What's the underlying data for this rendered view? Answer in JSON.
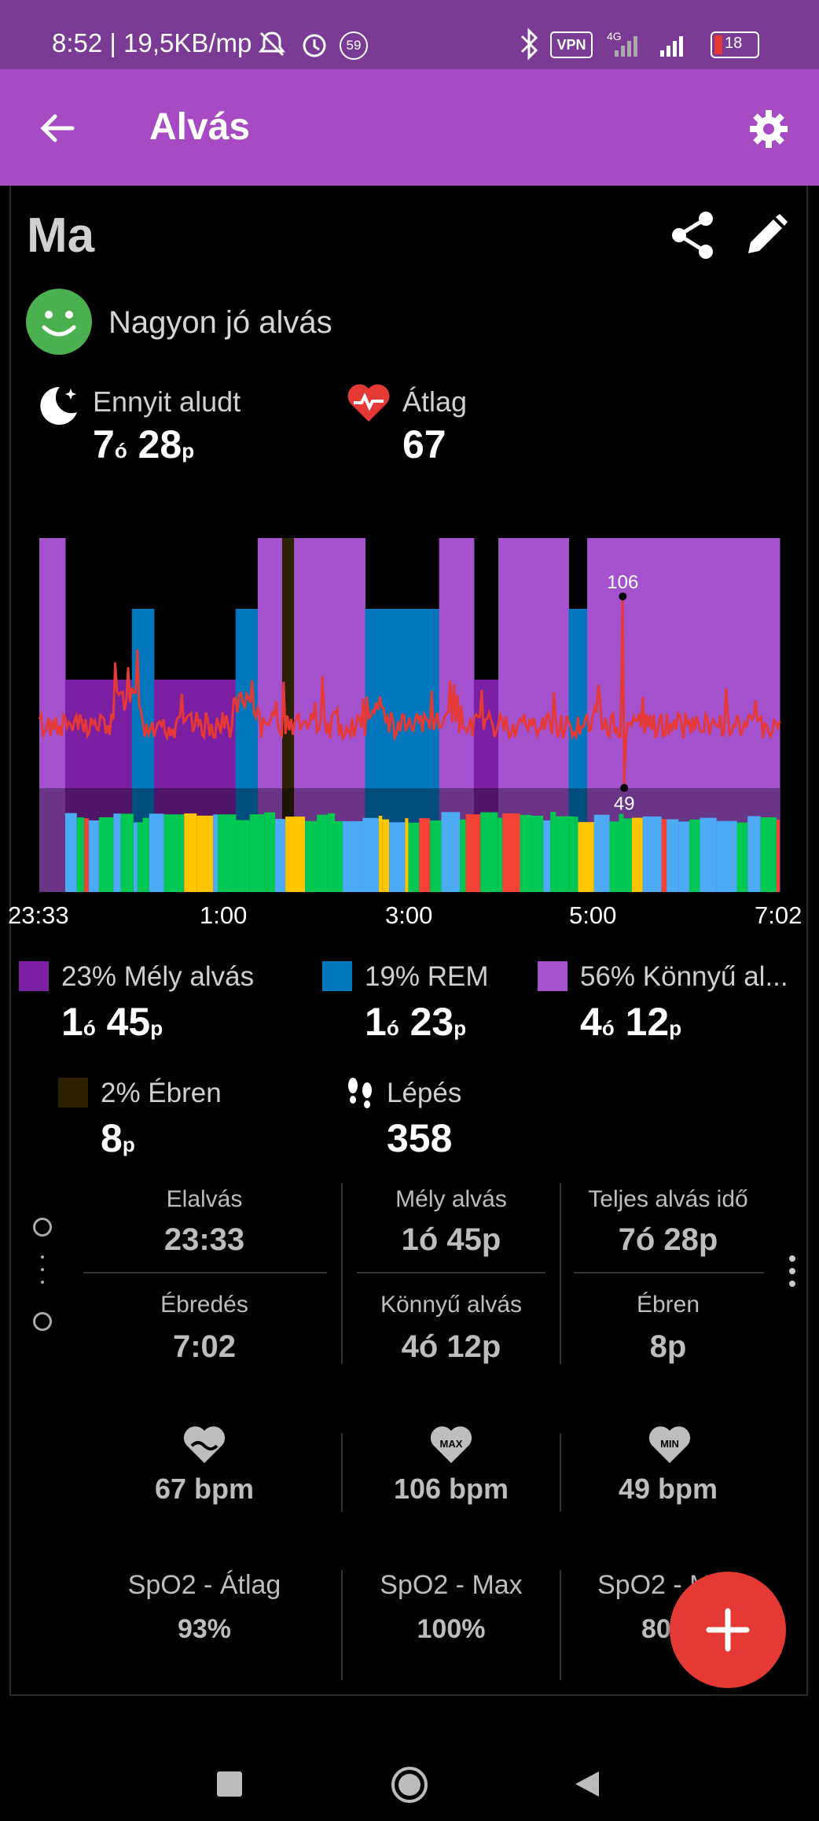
{
  "status_bar": {
    "time_text": "8:52 | 19,5KB/mp",
    "badge": "59",
    "vpn": "VPN",
    "net": "4G",
    "battery": "18"
  },
  "app_bar": {
    "title": "Alvás"
  },
  "day": {
    "label": "Ma"
  },
  "quality": {
    "label": "Nagyon jó alvás"
  },
  "summary": {
    "slept_label": "Ennyit aludt",
    "slept_h": "7",
    "slept_m": "28",
    "hr_label": "Átlag",
    "hr_value": "67"
  },
  "units": {
    "hour": "ó",
    "min": "p"
  },
  "chart_data": {
    "type": "area",
    "x_ticks": [
      "23:33",
      "1:00",
      "3:00",
      "5:00",
      "7:02"
    ],
    "annotations": [
      {
        "label": "106",
        "kind": "max"
      },
      {
        "label": "49",
        "kind": "min"
      }
    ],
    "hr_max": 106,
    "hr_min": 49,
    "colors": {
      "light": "#a552cf",
      "deep": "#7b1fa2",
      "rem": "#0277bd",
      "awake": "#2b2000",
      "hr": "#e53935"
    },
    "segments": [
      {
        "start": 0.0,
        "end": 0.035,
        "stage": "light"
      },
      {
        "start": 0.035,
        "end": 0.125,
        "stage": "deep"
      },
      {
        "start": 0.125,
        "end": 0.155,
        "stage": "rem"
      },
      {
        "start": 0.155,
        "end": 0.265,
        "stage": "deep"
      },
      {
        "start": 0.265,
        "end": 0.295,
        "stage": "rem"
      },
      {
        "start": 0.295,
        "end": 0.328,
        "stage": "light"
      },
      {
        "start": 0.328,
        "end": 0.344,
        "stage": "awake"
      },
      {
        "start": 0.344,
        "end": 0.44,
        "stage": "light"
      },
      {
        "start": 0.44,
        "end": 0.54,
        "stage": "rem"
      },
      {
        "start": 0.54,
        "end": 0.587,
        "stage": "light"
      },
      {
        "start": 0.587,
        "end": 0.62,
        "stage": "deep"
      },
      {
        "start": 0.62,
        "end": 0.715,
        "stage": "light"
      },
      {
        "start": 0.715,
        "end": 0.74,
        "stage": "rem"
      },
      {
        "start": 0.74,
        "end": 1.0,
        "stage": "light"
      }
    ]
  },
  "legend": {
    "deep": {
      "label": "23% Mély alvás",
      "h": "1",
      "m": "45",
      "color": "#7b1fa2"
    },
    "rem": {
      "label": "19% REM",
      "h": "1",
      "m": "23",
      "color": "#0277bd"
    },
    "light": {
      "label": "56% Könnyű al...",
      "h": "4",
      "m": "12",
      "color": "#a552cf"
    },
    "awake": {
      "label": "2% Ébren",
      "m": "8",
      "color": "#2b2000"
    },
    "steps": {
      "label": "Lépés",
      "value": "358"
    }
  },
  "details": {
    "fall_asleep": {
      "label": "Elalvás",
      "value": "23:33"
    },
    "deep": {
      "label": "Mély alvás",
      "value": "1ó 45p"
    },
    "total": {
      "label": "Teljes alvás idő",
      "value": "7ó 28p"
    },
    "wake": {
      "label": "Ébredés",
      "value": "7:02"
    },
    "light": {
      "label": "Könnyű alvás",
      "value": "4ó 12p"
    },
    "awake": {
      "label": "Ébren",
      "value": "8p"
    }
  },
  "heart": {
    "avg": "67 bpm",
    "max": "106 bpm",
    "min": "49 bpm",
    "max_tag": "MAX",
    "min_tag": "MIN"
  },
  "spo2": {
    "avg_label": "SpO2 - Átlag",
    "avg_value": "93%",
    "max_label": "SpO2 - Max",
    "max_value": "100%",
    "min_label": "SpO2 - M",
    "min_value": "80"
  }
}
